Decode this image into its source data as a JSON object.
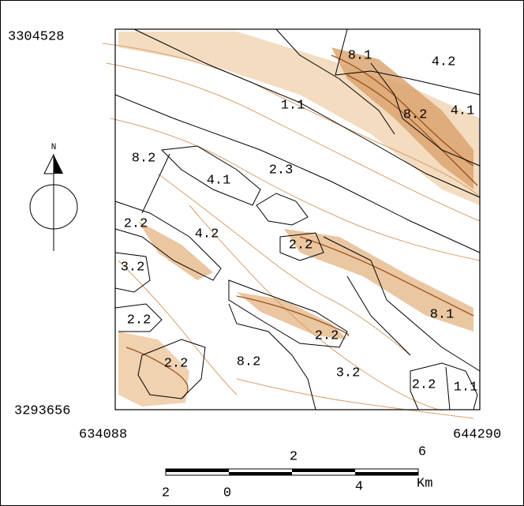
{
  "coordinates": {
    "north": "3304528",
    "south": "3293656",
    "west": "634088",
    "east": "644290"
  },
  "north_arrow": "N",
  "zones": [
    "8.1",
    "4.2",
    "1.1",
    "8.2",
    "4.1",
    "8.2",
    "2.3",
    "4.1",
    "2.2",
    "4.2",
    "2.2",
    "3.2",
    "8.1",
    "2.2",
    "2.2",
    "2.2",
    "8.2",
    "3.2",
    "2.2",
    "1.1"
  ],
  "scale_bar": {
    "top": [
      "2",
      "6"
    ],
    "bottom": [
      "2",
      "0",
      "4"
    ],
    "unit": "Km"
  }
}
